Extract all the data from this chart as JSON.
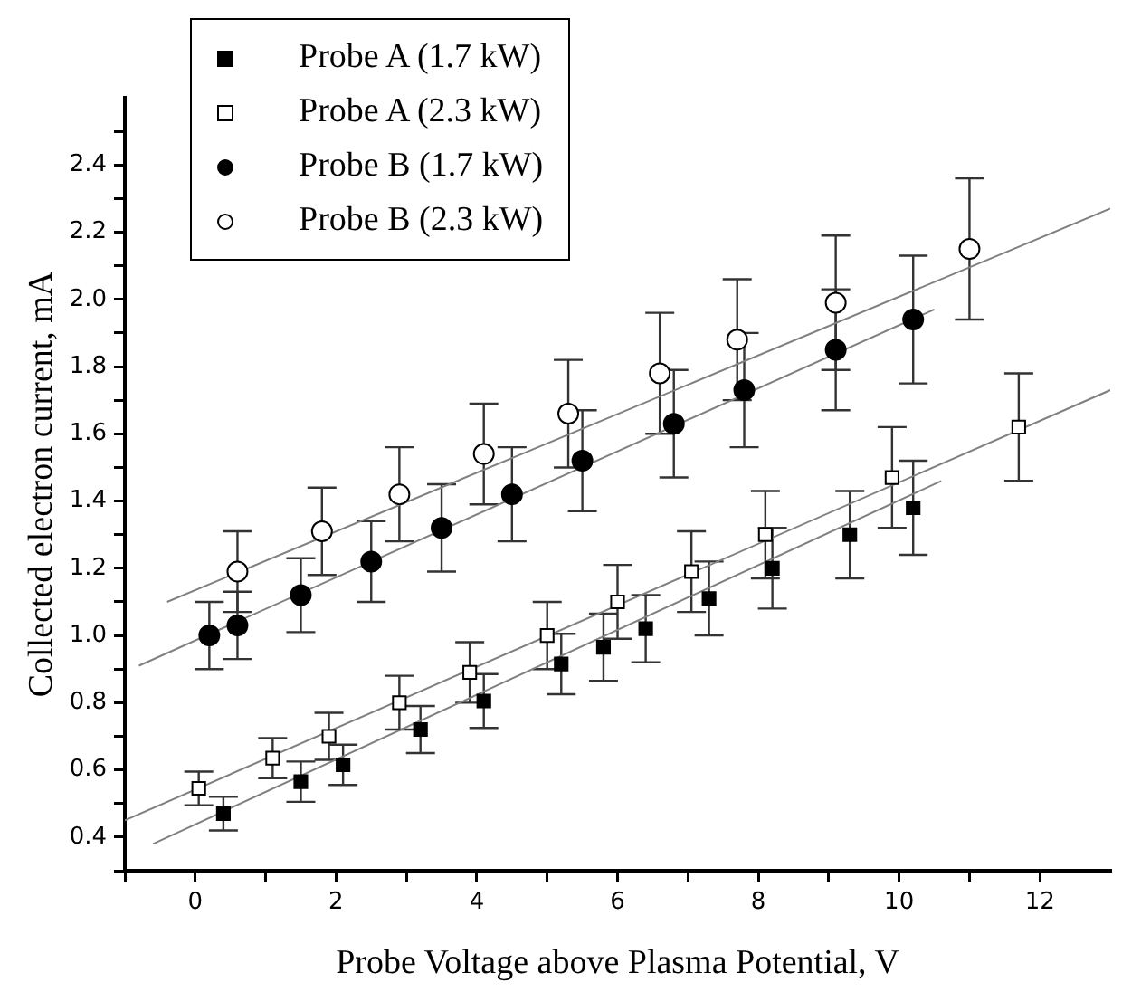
{
  "chart_data": {
    "type": "scatter",
    "xlabel": "Probe Voltage above Plasma Potential, V",
    "ylabel": "Collected electron current, mA",
    "xlim": [
      -1,
      13
    ],
    "xticks": [
      0,
      2,
      4,
      6,
      8,
      10,
      12,
      {
        "value": -1,
        "label": null
      },
      {
        "value": 1,
        "label": null
      },
      {
        "value": 3,
        "label": null
      },
      {
        "value": 5,
        "label": null
      },
      {
        "value": 7,
        "label": null
      },
      {
        "value": 9,
        "label": null
      },
      {
        "value": 11,
        "label": null
      }
    ],
    "ylim": [
      0.3,
      2.6
    ],
    "yticks": [
      {
        "value": 0.4,
        "label": "0.4"
      },
      {
        "value": 0.6,
        "label": "0.6"
      },
      {
        "value": 0.8,
        "label": "0.8"
      },
      {
        "value": 1.0,
        "label": "1.0"
      },
      {
        "value": 1.2,
        "label": "1.2"
      },
      {
        "value": 1.4,
        "label": "1.4"
      },
      {
        "value": 1.6,
        "label": "1.6"
      },
      {
        "value": 1.8,
        "label": "1.8"
      },
      {
        "value": 2.0,
        "label": "2.0"
      },
      {
        "value": 2.2,
        "label": "2.2"
      },
      {
        "value": 2.4,
        "label": "2.4"
      },
      {
        "value": 0.3,
        "label": null
      },
      {
        "value": 0.5,
        "label": null
      },
      {
        "value": 0.7,
        "label": null
      },
      {
        "value": 0.9,
        "label": null
      },
      {
        "value": 1.1,
        "label": null
      },
      {
        "value": 1.3,
        "label": null
      },
      {
        "value": 1.5,
        "label": null
      },
      {
        "value": 1.7,
        "label": null
      },
      {
        "value": 1.9,
        "label": null
      },
      {
        "value": 2.1,
        "label": null
      },
      {
        "value": 2.3,
        "label": null
      },
      {
        "value": 2.5,
        "label": null
      }
    ],
    "grid": false,
    "legend": "top left",
    "series": [
      {
        "name": "Probe A (1.7 kW)",
        "color": "#000000",
        "marker": "square",
        "x": [
          0.4,
          1.5,
          2.1,
          3.2,
          4.1,
          5.2,
          5.8,
          6.4,
          7.3,
          8.2,
          9.3,
          10.2
        ],
        "values": [
          0.47,
          0.565,
          0.615,
          0.72,
          0.805,
          0.915,
          0.965,
          1.02,
          1.11,
          1.2,
          1.3,
          1.38
        ],
        "errors": [
          0.05,
          0.06,
          0.06,
          0.07,
          0.08,
          0.09,
          0.1,
          0.1,
          0.11,
          0.12,
          0.13,
          0.14
        ]
      },
      {
        "name": "Probe A (2.3 kW)",
        "color": "#ffffff",
        "marker": "square",
        "x": [
          0.05,
          1.1,
          1.9,
          2.9,
          3.9,
          5.0,
          6.0,
          7.05,
          8.1,
          9.9,
          11.7
        ],
        "values": [
          0.545,
          0.635,
          0.7,
          0.8,
          0.89,
          1.0,
          1.1,
          1.19,
          1.3,
          1.47,
          1.62
        ],
        "errors": [
          0.05,
          0.06,
          0.07,
          0.08,
          0.09,
          0.1,
          0.11,
          0.12,
          0.13,
          0.15,
          0.16
        ]
      },
      {
        "name": "Probe B (1.7 kW)",
        "color": "#000000",
        "marker": "circle",
        "x": [
          0.2,
          0.6,
          1.5,
          2.5,
          3.5,
          4.5,
          5.5,
          6.8,
          7.8,
          9.1,
          10.2
        ],
        "values": [
          1.0,
          1.03,
          1.12,
          1.22,
          1.32,
          1.42,
          1.52,
          1.63,
          1.73,
          1.85,
          1.94
        ],
        "errors": [
          0.1,
          0.1,
          0.11,
          0.12,
          0.13,
          0.14,
          0.15,
          0.16,
          0.17,
          0.18,
          0.19
        ]
      },
      {
        "name": "Probe B (2.3 kW)",
        "color": "#ffffff",
        "marker": "circle",
        "x": [
          0.6,
          1.8,
          2.9,
          4.1,
          5.3,
          6.6,
          7.7,
          9.1,
          11.0
        ],
        "values": [
          1.19,
          1.31,
          1.42,
          1.54,
          1.66,
          1.78,
          1.88,
          1.99,
          2.15
        ],
        "errors": [
          0.12,
          0.13,
          0.14,
          0.15,
          0.16,
          0.18,
          0.18,
          0.2,
          0.21
        ]
      },
      {
        "type": "line",
        "color": "#808080",
        "marker": "none",
        "x": [
          -0.6,
          10.6
        ],
        "values": [
          0.38,
          1.46
        ]
      },
      {
        "type": "line",
        "color": "#808080",
        "marker": "none",
        "x": [
          -1,
          13
        ],
        "values": [
          0.45,
          1.73
        ]
      },
      {
        "type": "line",
        "color": "#808080",
        "marker": "none",
        "x": [
          -0.8,
          10.5
        ],
        "values": [
          0.91,
          1.97
        ]
      },
      {
        "type": "line",
        "color": "#808080",
        "marker": "none",
        "x": [
          -0.4,
          13
        ],
        "values": [
          1.1,
          2.27
        ]
      }
    ]
  }
}
